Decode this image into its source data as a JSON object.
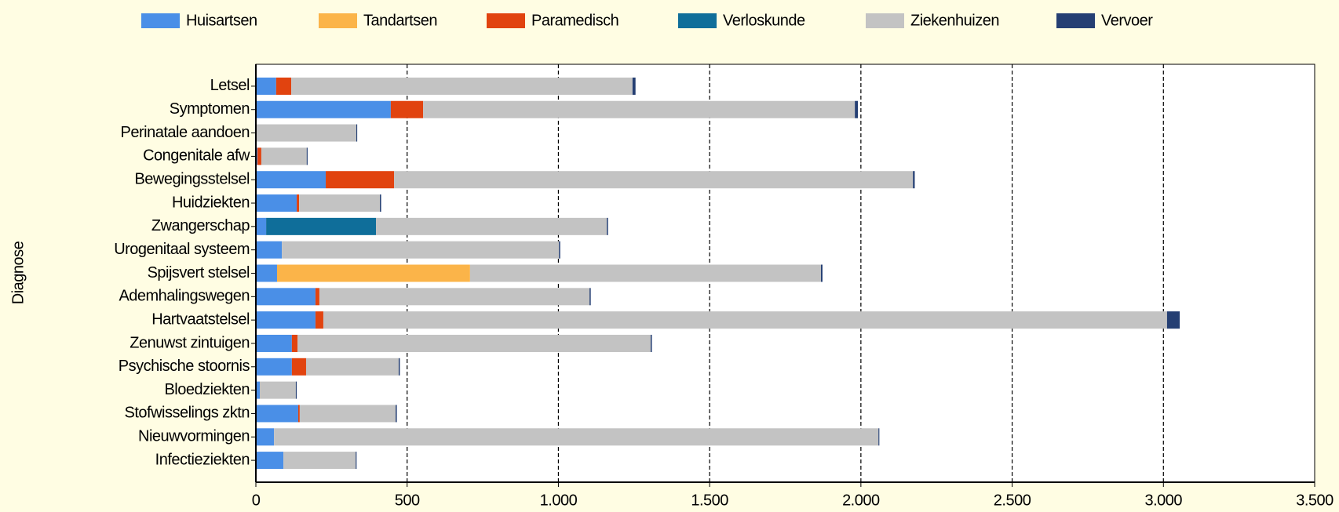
{
  "chart_data": {
    "type": "barh_stacked",
    "y_label": "Diagnose",
    "categories": [
      "Letsel",
      "Symptomen",
      "Perinatale aandoen",
      "Congenitale afw",
      "Bewegingsstelsel",
      "Huidziekten",
      "Zwangerschap",
      "Urogenitaal systeem",
      "Spijsvert stelsel",
      "Ademhalingswegen",
      "Hartvaatstelsel",
      "Zenuwst zintuigen",
      "Psychische stoornis",
      "Bloedziekten",
      "Stofwisselings zktn",
      "Nieuwvormingen",
      "Infectieziekten"
    ],
    "series": [
      {
        "name": "Huisartsen",
        "color": "#4a8fe7",
        "values": [
          67,
          446,
          2,
          5,
          231,
          135,
          34,
          86,
          70,
          197,
          197,
          119,
          119,
          13,
          140,
          60,
          91
        ]
      },
      {
        "name": "Tandartsen",
        "color": "#fbb449",
        "values": [
          0,
          0,
          0,
          0,
          0,
          0,
          0,
          0,
          638,
          0,
          0,
          0,
          0,
          0,
          0,
          0,
          0
        ]
      },
      {
        "name": "Paramedisch",
        "color": "#e1430f",
        "values": [
          50,
          107,
          0,
          13,
          226,
          8,
          0,
          0,
          0,
          13,
          26,
          19,
          47,
          0,
          5,
          0,
          0
        ]
      },
      {
        "name": "Verloskunde",
        "color": "#0f6e9a",
        "values": [
          0,
          0,
          0,
          0,
          0,
          0,
          363,
          0,
          0,
          0,
          0,
          0,
          0,
          0,
          0,
          0,
          0
        ]
      },
      {
        "name": "Ziekenhuizen",
        "color": "#c3c3c3",
        "values": [
          1128,
          1427,
          330,
          150,
          1715,
          267,
          763,
          916,
          1160,
          893,
          2789,
          1167,
          306,
          119,
          317,
          1998,
          239
        ]
      },
      {
        "name": "Vervoer",
        "color": "#253f73",
        "values": [
          10,
          10,
          3,
          3,
          6,
          4,
          4,
          4,
          5,
          4,
          42,
          4,
          4,
          3,
          4,
          3,
          3
        ]
      }
    ],
    "xlim": [
      0,
      3500
    ],
    "xticks": [
      0,
      500,
      {
        "value": 1000,
        "label": "1.000"
      },
      {
        "value": 1500,
        "label": "1.500"
      },
      {
        "value": 2000,
        "label": "2.000"
      },
      {
        "value": 2500,
        "label": "2.500"
      },
      {
        "value": 3000,
        "label": "3.000"
      },
      {
        "value": 3500,
        "label": "3.500"
      }
    ],
    "grid": true
  }
}
